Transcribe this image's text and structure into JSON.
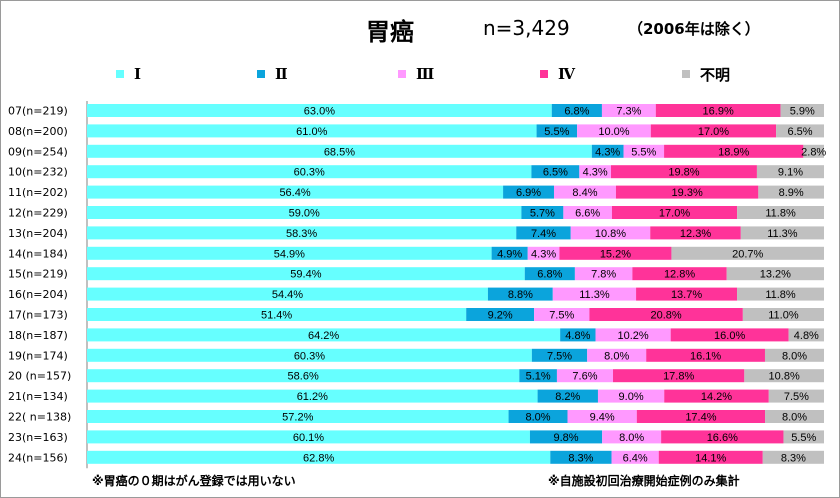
{
  "chart_data": {
    "type": "bar",
    "orientation": "horizontal",
    "stacked": true,
    "percent_scale": true,
    "title": "胃癌",
    "n_label": "n=3,429",
    "title_note": "（2006年は除く）",
    "categories": [
      "07(n=219)",
      "08(n=200)",
      "09(n=254)",
      "10(n=232)",
      "11(n=202)",
      "12(n=229)",
      "13(n=204)",
      "14(n=184)",
      "15(n=219)",
      "16(n=204)",
      "17(n=173)",
      "18(n=187)",
      "19(n=174)",
      "20 (n=157)",
      "21(n=134)",
      "22( n=138)",
      "23(n=163)",
      "24(n=156)"
    ],
    "series": [
      {
        "name": "Ⅰ",
        "color": "#66ffff",
        "values": [
          63.0,
          61.0,
          68.5,
          60.3,
          56.4,
          59.0,
          58.3,
          54.9,
          59.4,
          54.4,
          51.4,
          64.2,
          60.3,
          58.6,
          61.2,
          57.2,
          60.1,
          62.8
        ]
      },
      {
        "name": "Ⅱ",
        "color": "#0ba4dc",
        "values": [
          6.8,
          5.5,
          4.3,
          6.5,
          6.9,
          5.7,
          7.4,
          4.9,
          6.8,
          8.8,
          9.2,
          4.8,
          7.5,
          5.1,
          8.2,
          8.0,
          9.8,
          8.3
        ]
      },
      {
        "name": "Ⅲ",
        "color": "#ff99ff",
        "values": [
          7.3,
          10.0,
          5.5,
          4.3,
          8.4,
          6.6,
          10.8,
          4.3,
          7.8,
          11.3,
          7.5,
          10.2,
          8.0,
          7.6,
          9.0,
          9.4,
          8.0,
          6.4
        ]
      },
      {
        "name": "Ⅳ",
        "color": "#ff3399",
        "values": [
          16.9,
          17.0,
          18.9,
          19.8,
          19.3,
          17.0,
          12.3,
          15.2,
          12.8,
          13.7,
          20.8,
          16.0,
          16.1,
          17.8,
          14.2,
          17.4,
          16.6,
          14.1
        ]
      },
      {
        "name": "不明",
        "color": "#c0c0c0",
        "values": [
          5.9,
          6.5,
          2.8,
          9.1,
          8.9,
          11.8,
          11.3,
          20.7,
          13.2,
          11.8,
          11.0,
          4.8,
          8.0,
          10.8,
          7.5,
          8.0,
          5.5,
          8.3
        ]
      }
    ],
    "value_labels": [
      [
        "63.0%",
        "6.8%",
        "7.3%",
        "16.9%",
        "5.9%"
      ],
      [
        "61.0%",
        "5.5%",
        "10.0%",
        "17.0%",
        "6.5%"
      ],
      [
        "68.5%",
        "4.3%",
        "5.5%",
        "18.9%",
        "2.8%"
      ],
      [
        "60.3%",
        "6.5%",
        "4.3%",
        "19.8%",
        "9.1%"
      ],
      [
        "56.4%",
        "6.9%",
        "8.4%",
        "19.3%",
        "8.9%"
      ],
      [
        "59.0%",
        "5.7%",
        "6.6%",
        "17.0%",
        "11.8%"
      ],
      [
        "58.3%",
        "7.4%",
        "10.8%",
        "12.3%",
        "11.3%"
      ],
      [
        "54.9%",
        "4.9%",
        "4.3%",
        "15.2%",
        "20.7%"
      ],
      [
        "59.4%",
        "6.8%",
        "7.8%",
        "12.8%",
        "13.2%"
      ],
      [
        "54.4%",
        "8.8%",
        "11.3%",
        "13.7%",
        "11.8%"
      ],
      [
        "51.4%",
        "9.2%",
        "7.5%",
        "20.8%",
        "11.0%"
      ],
      [
        "64.2%",
        "4.8%",
        "10.2%",
        "16.0%",
        "4.8%"
      ],
      [
        "60.3%",
        "7.5%",
        "8.0%",
        "16.1%",
        "8.0%"
      ],
      [
        "58.6%",
        "5.1%",
        "7.6%",
        "17.8%",
        "10.8%"
      ],
      [
        "61.2%",
        "8.2%",
        "9.0%",
        "14.2%",
        "7.5%"
      ],
      [
        "57.2%",
        "8.0%",
        "9.4%",
        "17.4%",
        "8.0%"
      ],
      [
        "60.1%",
        "9.8%",
        "8.0%",
        "16.6%",
        "5.5%"
      ],
      [
        "62.8%",
        "8.3%",
        "6.4%",
        "14.1%",
        "8.3%"
      ]
    ],
    "legend_position": "top"
  },
  "footnotes": {
    "left": "※胃癌の０期はがん登録では用いない",
    "right": "※自施設初回治療開始症例のみ集計"
  }
}
